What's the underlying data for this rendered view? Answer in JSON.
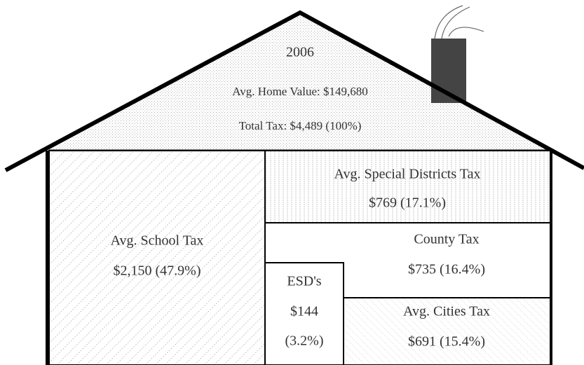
{
  "roof": {
    "year": "2006",
    "home_value": "Avg. Home Value: $149,680",
    "total_tax": "Total Tax: $4,489 (100%)"
  },
  "sections": [
    {
      "label": "Avg. School Tax",
      "amount": "$2,150 (47.9%)"
    },
    {
      "label": "Avg. Special Districts Tax",
      "amount": "$769 (17.1%)"
    },
    {
      "label": "County Tax",
      "amount": "$735 (16.4%)"
    },
    {
      "label": "ESD's",
      "amount": "$144",
      "share": "(3.2%)"
    },
    {
      "label": "Avg. Cities Tax",
      "amount": "$691 (15.4%)"
    }
  ]
}
